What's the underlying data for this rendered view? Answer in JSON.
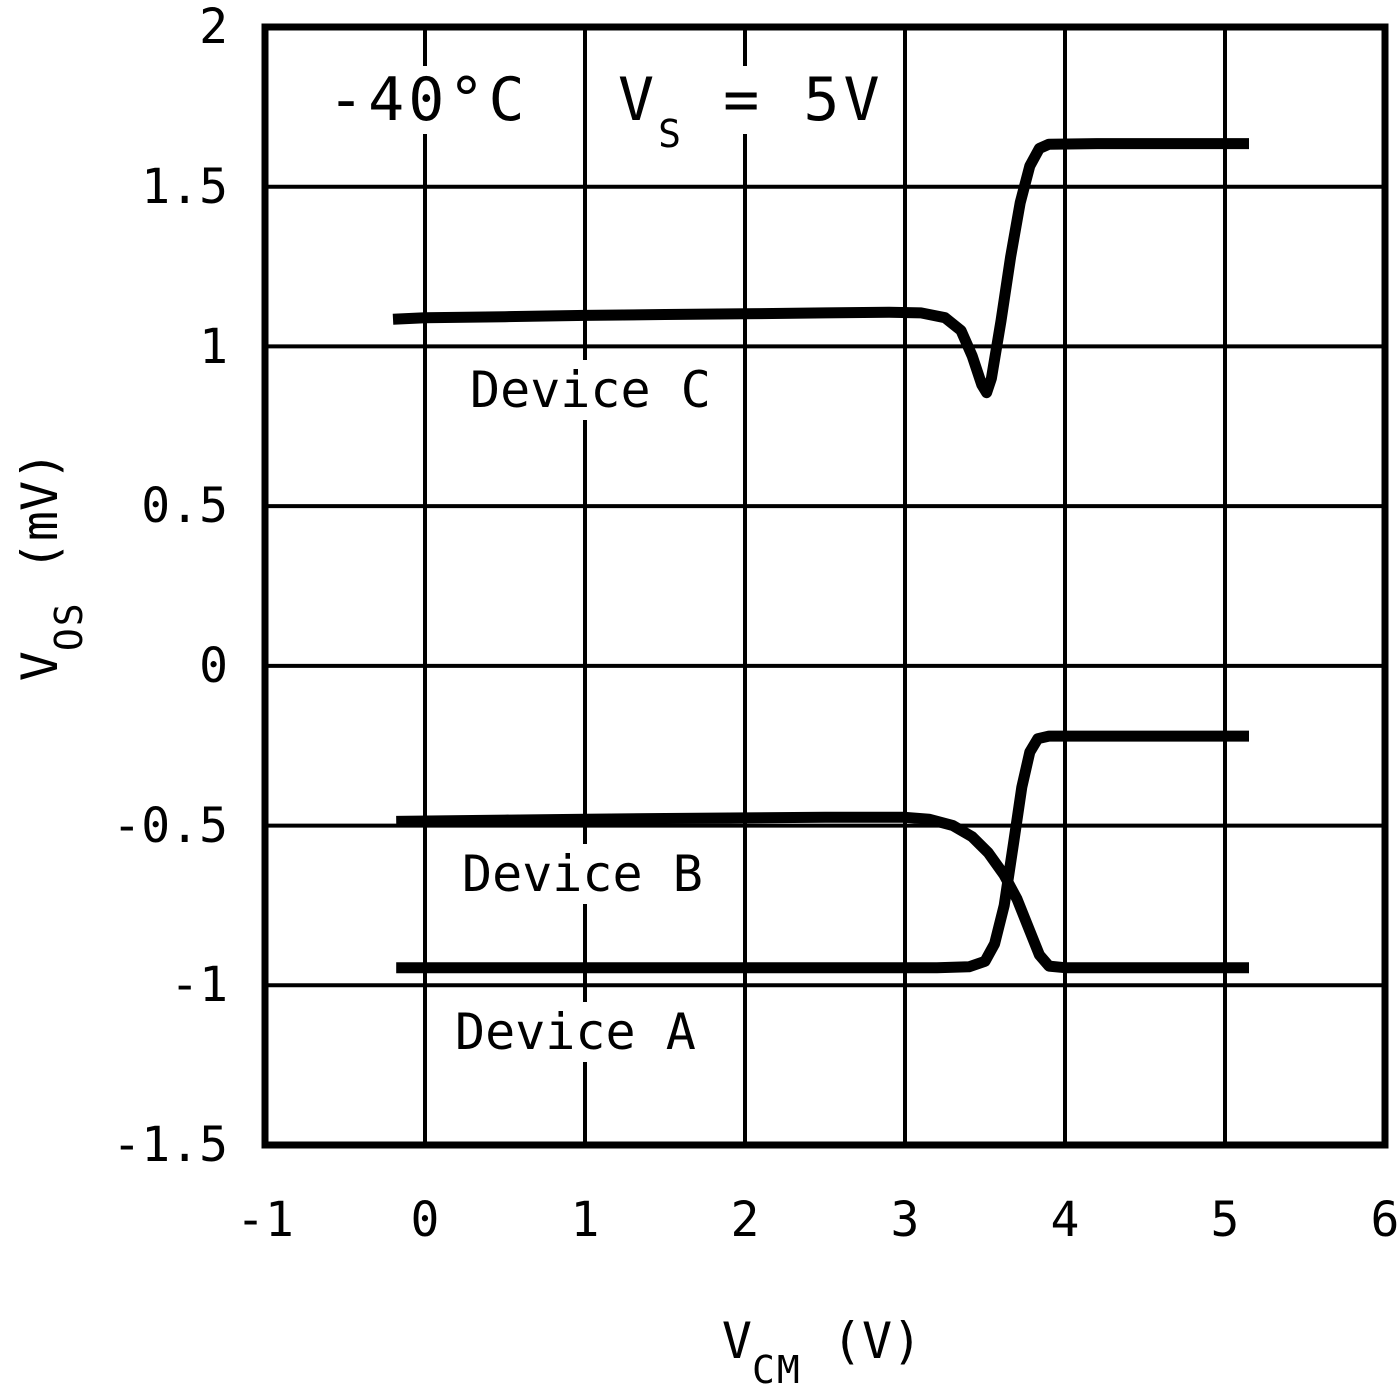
{
  "chart_data": {
    "type": "line",
    "title": "",
    "grid": true,
    "legend_position": "inline-labels",
    "annotations": {
      "temperature": "-40°C",
      "supply": {
        "base": "V",
        "sub": "S",
        "rest": " = 5V"
      }
    },
    "x_axis": {
      "title_base": "V",
      "title_sub": "CM",
      "title_unit": "(V)",
      "range": [
        -1,
        6
      ],
      "tick_values": [
        -1,
        0,
        1,
        2,
        3,
        4,
        5,
        6
      ],
      "ticks": [
        "-1",
        "0",
        "1",
        "2",
        "3",
        "4",
        "5",
        "6"
      ]
    },
    "y_axis": {
      "title_base": "V",
      "title_sub": "OS",
      "title_unit": "(mV)",
      "range": [
        -1.5,
        2
      ],
      "tick_values": [
        2,
        1.5,
        1,
        0.5,
        0,
        -0.5,
        -1,
        -1.5
      ],
      "ticks": [
        "2",
        "1.5",
        "1",
        "0.5",
        "0",
        "-0.5",
        "-1",
        "-1.5"
      ]
    },
    "colors": {
      "stroke": "#000000",
      "background": "#ffffff"
    },
    "series": [
      {
        "name": "Device C",
        "points": [
          [
            -0.2,
            1.085
          ],
          [
            0.0,
            1.09
          ],
          [
            0.5,
            1.093
          ],
          [
            1.0,
            1.097
          ],
          [
            1.5,
            1.1
          ],
          [
            2.0,
            1.102
          ],
          [
            2.5,
            1.105
          ],
          [
            2.9,
            1.107
          ],
          [
            3.1,
            1.105
          ],
          [
            3.25,
            1.09
          ],
          [
            3.35,
            1.05
          ],
          [
            3.42,
            0.97
          ],
          [
            3.48,
            0.88
          ],
          [
            3.51,
            0.855
          ],
          [
            3.54,
            0.9
          ],
          [
            3.6,
            1.08
          ],
          [
            3.66,
            1.28
          ],
          [
            3.72,
            1.45
          ],
          [
            3.78,
            1.565
          ],
          [
            3.84,
            1.62
          ],
          [
            3.9,
            1.633
          ],
          [
            4.2,
            1.635
          ],
          [
            4.7,
            1.635
          ],
          [
            5.15,
            1.635
          ]
        ]
      },
      {
        "name": "Device B",
        "points": [
          [
            -0.18,
            -0.487
          ],
          [
            0.5,
            -0.483
          ],
          [
            1.0,
            -0.48
          ],
          [
            1.5,
            -0.478
          ],
          [
            2.0,
            -0.476
          ],
          [
            2.5,
            -0.474
          ],
          [
            3.0,
            -0.474
          ],
          [
            3.15,
            -0.48
          ],
          [
            3.3,
            -0.5
          ],
          [
            3.42,
            -0.535
          ],
          [
            3.52,
            -0.585
          ],
          [
            3.62,
            -0.655
          ],
          [
            3.7,
            -0.73
          ],
          [
            3.78,
            -0.83
          ],
          [
            3.84,
            -0.905
          ],
          [
            3.9,
            -0.94
          ],
          [
            4.0,
            -0.945
          ],
          [
            4.6,
            -0.945
          ],
          [
            5.15,
            -0.945
          ]
        ]
      },
      {
        "name": "Device A",
        "points": [
          [
            -0.18,
            -0.945
          ],
          [
            0.5,
            -0.945
          ],
          [
            1.5,
            -0.945
          ],
          [
            2.5,
            -0.945
          ],
          [
            3.2,
            -0.945
          ],
          [
            3.4,
            -0.942
          ],
          [
            3.5,
            -0.925
          ],
          [
            3.56,
            -0.87
          ],
          [
            3.62,
            -0.75
          ],
          [
            3.68,
            -0.55
          ],
          [
            3.73,
            -0.38
          ],
          [
            3.78,
            -0.27
          ],
          [
            3.83,
            -0.228
          ],
          [
            3.9,
            -0.22
          ],
          [
            4.5,
            -0.22
          ],
          [
            5.15,
            -0.22
          ]
        ]
      }
    ]
  }
}
